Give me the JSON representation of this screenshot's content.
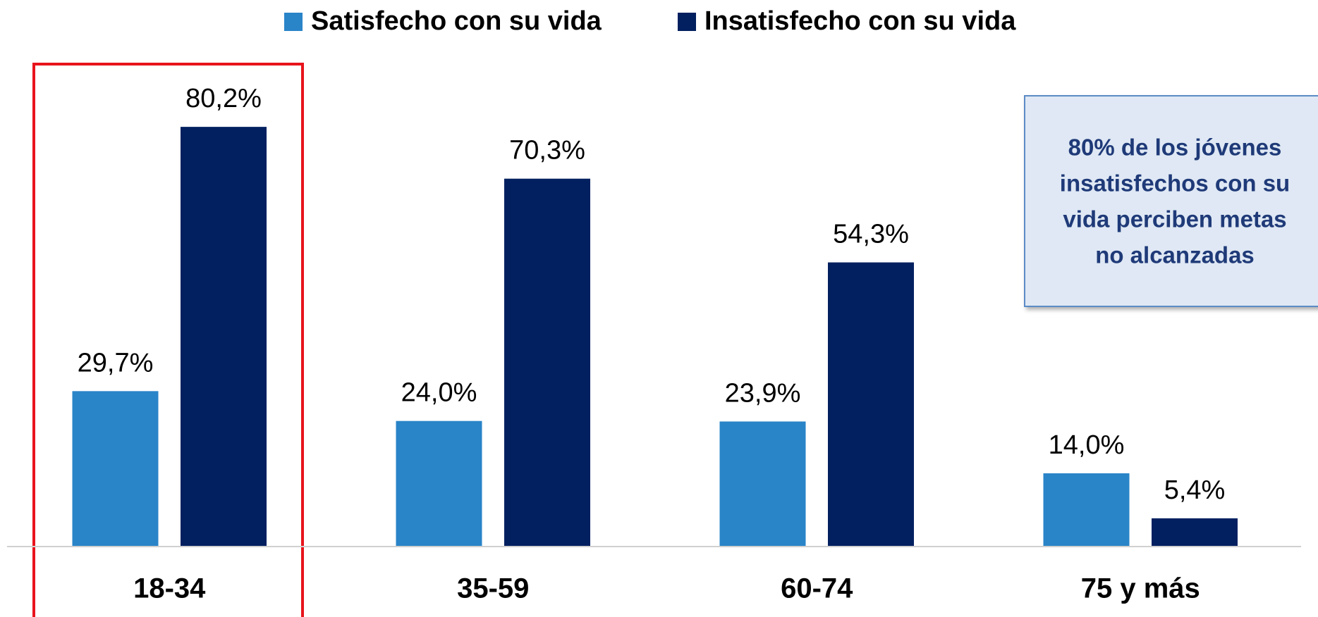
{
  "chart_data": {
    "type": "bar",
    "categories": [
      "18-34",
      "35-59",
      "60-74",
      "75 y más"
    ],
    "series": [
      {
        "name": "Satisfecho con su vida",
        "color": "#2a84c8",
        "values": [
          29.7,
          24.0,
          23.9,
          14.0
        ],
        "value_labels": [
          "29,7%",
          "24,0%",
          "23,9%",
          "14,0%"
        ]
      },
      {
        "name": "Insatisfecho con su vida",
        "color": "#022060",
        "values": [
          80.2,
          70.3,
          54.3,
          5.4
        ],
        "value_labels": [
          "80,2%",
          "70,3%",
          "54,3%",
          "5,4%"
        ]
      }
    ],
    "annotation": [
      "80% de los jóvenes",
      "insatisfechos con su",
      "vida perciben metas",
      "no alcanzadas"
    ]
  }
}
